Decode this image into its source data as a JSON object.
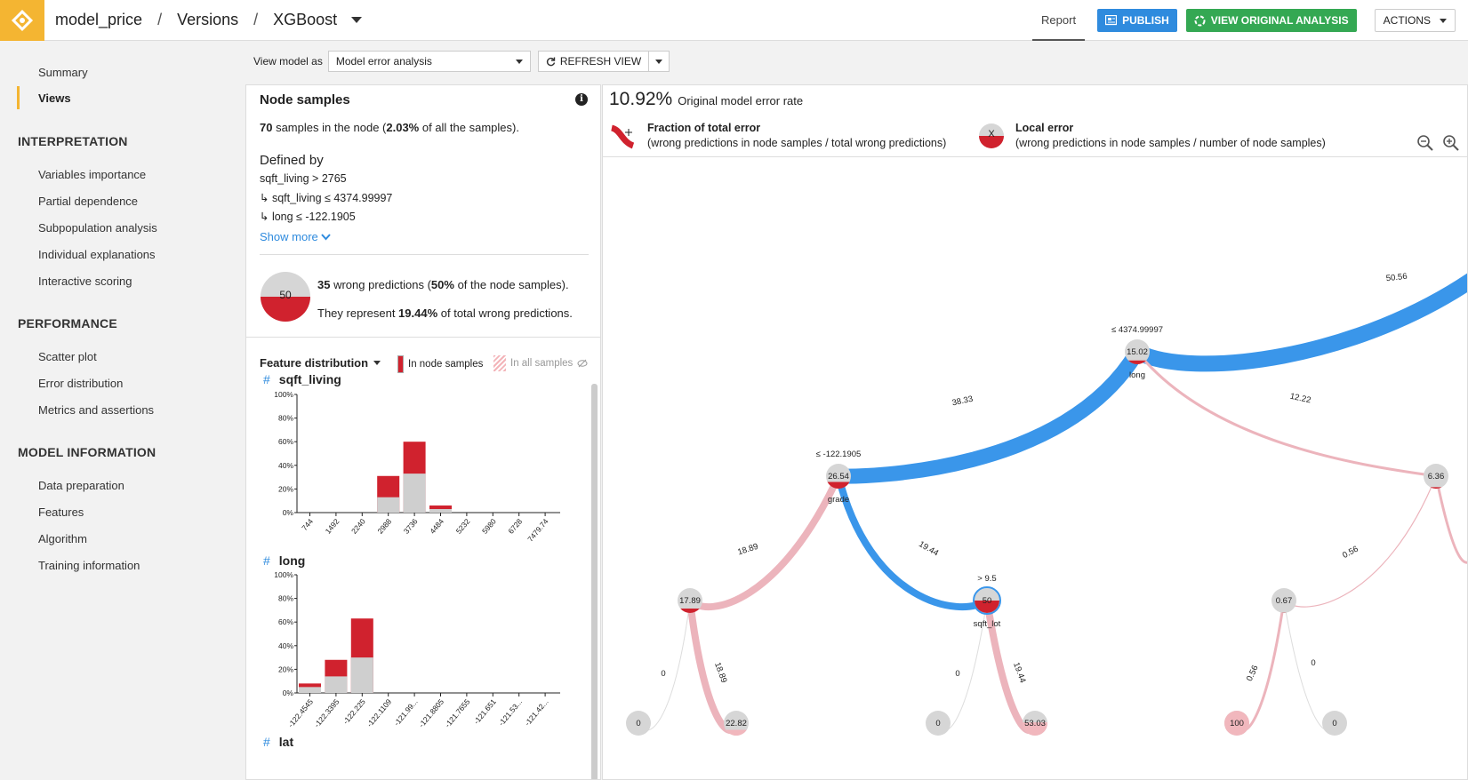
{
  "header": {
    "logo": "dataiku-logo",
    "breadcrumb": [
      "model_price",
      "Versions",
      "XGBoost"
    ],
    "report_tab": "Report",
    "publish_label": "PUBLISH",
    "view_original_label": "VIEW ORIGINAL ANALYSIS",
    "actions_label": "ACTIONS"
  },
  "sidebar": {
    "items_top": [
      {
        "label": "Summary",
        "active": false
      },
      {
        "label": "Views",
        "active": true
      }
    ],
    "sections": [
      {
        "title": "INTERPRETATION",
        "items": [
          "Variables importance",
          "Partial dependence",
          "Subpopulation analysis",
          "Individual explanations",
          "Interactive scoring"
        ]
      },
      {
        "title": "PERFORMANCE",
        "items": [
          "Scatter plot",
          "Error distribution",
          "Metrics and assertions"
        ]
      },
      {
        "title": "MODEL INFORMATION",
        "items": [
          "Data preparation",
          "Features",
          "Algorithm",
          "Training information"
        ]
      }
    ]
  },
  "viewbar": {
    "label": "View model as",
    "selected": "Model error analysis",
    "refresh_label": "REFRESH VIEW"
  },
  "node_samples": {
    "title": "Node samples",
    "count": "70",
    "count_text": " samples in the node (",
    "pct": "2.03%",
    "pct_text": " of all the samples).",
    "defined_by": "Defined by",
    "rules": [
      "sqft_living > 2765",
      "↳ sqft_living ≤ 4374.99997",
      "↳ long ≤ -122.1905"
    ],
    "show_more": "Show more",
    "local_error_value": "50",
    "wrong_count": "35",
    "wrong_text": " wrong predictions (",
    "wrong_pct": "50%",
    "wrong_pct_text": " of the node samples).",
    "represent_text": "They represent ",
    "represent_pct": "19.44%",
    "represent_tail": " of total wrong predictions."
  },
  "feature_distribution": {
    "title": "Feature distribution",
    "legend_node": "In node samples",
    "legend_all": "In all samples",
    "y_ticks": [
      "100%",
      "80%",
      "60%",
      "40%",
      "20%",
      "0%"
    ],
    "features": [
      {
        "name": "sqft_living",
        "bins": [
          "744",
          "1492",
          "2240",
          "2988",
          "3736",
          "4484",
          "5232",
          "5980",
          "6728",
          "7479.74"
        ],
        "node_pct": [
          0,
          0,
          0,
          31,
          60,
          6,
          0,
          0,
          0,
          0
        ],
        "all_pct": [
          0,
          0,
          0,
          13,
          33,
          3,
          0,
          0,
          0,
          0
        ]
      },
      {
        "name": "long",
        "bins": [
          "-122.4545",
          "-122.3395",
          "-122.225",
          "-122.1109",
          "-121.99...",
          "-121.8805",
          "-121.7655",
          "-121.651",
          "-121.53...",
          "-121.42..."
        ],
        "node_pct": [
          8,
          28,
          63,
          0,
          0,
          0,
          0,
          0,
          0,
          0
        ],
        "all_pct": [
          5,
          14,
          30,
          0,
          0,
          0,
          0,
          0,
          0,
          0
        ]
      },
      {
        "name": "lat"
      }
    ]
  },
  "error_panel": {
    "rate_value": "10.92%",
    "rate_label": "Original model error rate",
    "fraction_title": "Fraction of total error",
    "fraction_desc": "(wrong predictions in node samples / total wrong predictions)",
    "local_badge": "X",
    "local_title": "Local error",
    "local_desc": "(wrong predictions in node samples / number of node samples)"
  },
  "tree": {
    "nodes": [
      {
        "id": "n1",
        "value": "15.02",
        "feature": "long",
        "threshold": "≤ 4374.99997"
      },
      {
        "id": "n2",
        "value": "26.54",
        "feature": "grade",
        "threshold": "≤ -122.1905"
      },
      {
        "id": "n3",
        "value": "6.36",
        "feature": "",
        "threshold": ""
      },
      {
        "id": "n4",
        "value": "17.89",
        "feature": "",
        "threshold": ""
      },
      {
        "id": "n5",
        "value": "50",
        "feature": "sqft_lot",
        "threshold": "> 9.5",
        "selected": true
      },
      {
        "id": "n6",
        "value": "0.67",
        "feature": "",
        "threshold": ""
      },
      {
        "id": "l1",
        "value": "0"
      },
      {
        "id": "l2",
        "value": "22.82"
      },
      {
        "id": "l3",
        "value": "0"
      },
      {
        "id": "l4",
        "value": "53.03"
      },
      {
        "id": "l5",
        "value": "100"
      },
      {
        "id": "l6",
        "value": "0"
      }
    ],
    "edges": [
      {
        "label": "50.56"
      },
      {
        "label": "38.33"
      },
      {
        "label": "12.22"
      },
      {
        "label": "18.89"
      },
      {
        "label": "19.44"
      },
      {
        "label": "0.56"
      },
      {
        "label": "0"
      },
      {
        "label": "18.89"
      },
      {
        "label": "0"
      },
      {
        "label": "19.44"
      },
      {
        "label": "0.56"
      },
      {
        "label": "0"
      }
    ],
    "colors": {
      "blue": "#3a96ea",
      "pink": "#ecb4bc",
      "red": "#d0222e",
      "grey": "#d6d6d6"
    }
  }
}
